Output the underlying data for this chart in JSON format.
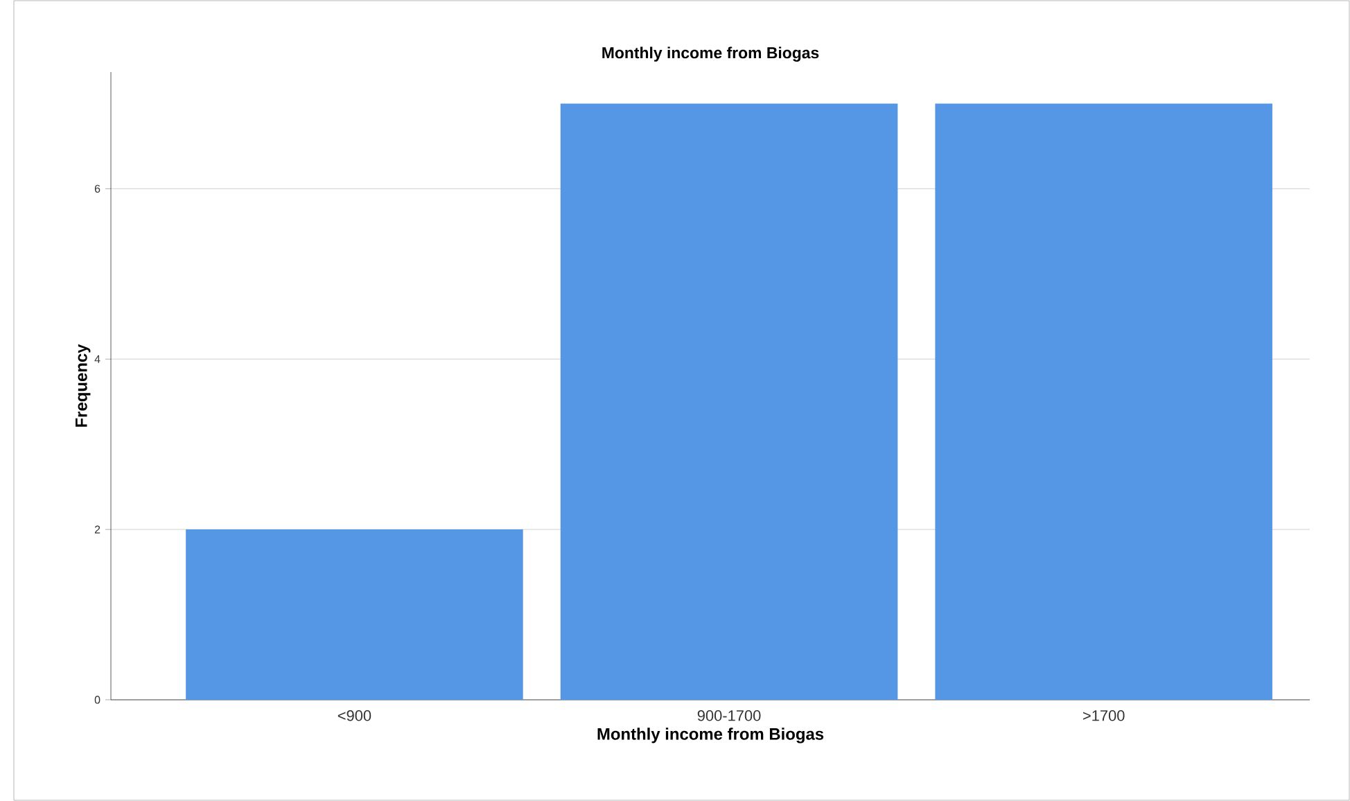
{
  "chart_data": {
    "type": "bar",
    "title": "Monthly income from Biogas",
    "xlabel": "Monthly income from Biogas",
    "ylabel": "Frequency",
    "categories": [
      "<900",
      "900-1700",
      ">1700"
    ],
    "values": [
      2,
      7,
      7
    ],
    "color": "#5596e5",
    "ylim": [
      0,
      7.37
    ],
    "yticks": [
      0,
      2,
      4,
      6
    ],
    "grid": "y"
  }
}
